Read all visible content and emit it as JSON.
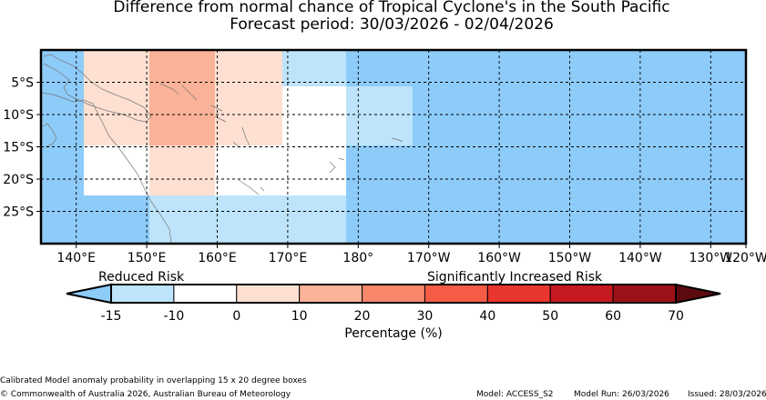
{
  "title": "Difference from normal chance of Tropical Cyclone's in the South Pacific",
  "subtitle": "Forecast period: 30/03/2026 - 02/04/2026",
  "map": {
    "lon_range": [
      135,
      235
    ],
    "lat_range": [
      -30,
      0
    ],
    "x_ticks": [
      "140°E",
      "150°E",
      "160°E",
      "170°E",
      "180°",
      "170°W",
      "160°W",
      "150°W",
      "140°W",
      "130°W",
      "120°W"
    ],
    "x_tick_values": [
      140,
      150,
      160,
      170,
      180,
      190,
      200,
      210,
      220,
      230,
      240
    ],
    "y_ticks": [
      "5°S",
      "10°S",
      "15°S",
      "20°S",
      "25°S"
    ],
    "y_tick_values": [
      -5,
      -10,
      -15,
      -20,
      -25
    ],
    "grid": "dashed",
    "cells": [
      {
        "lon": [
          135,
          235
        ],
        "lat": [
          -30,
          0
        ],
        "category": -15
      },
      {
        "lon": [
          141,
          171
        ],
        "lat": [
          -22,
          0
        ],
        "category": 10
      },
      {
        "lon": [
          150,
          180
        ],
        "lat": [
          -15,
          -22
        ],
        "category": -10
      },
      {
        "lon": [
          171,
          180
        ],
        "lat": [
          -6,
          -15
        ],
        "category": -10
      },
      {
        "lon": [
          141,
          150
        ],
        "lat": [
          -15,
          -22
        ],
        "category": -10
      },
      {
        "lon": [
          160,
          170
        ],
        "lat": [
          -15,
          -22
        ],
        "category": -10
      },
      {
        "lon": [
          160,
          170
        ],
        "lat": [
          -6,
          -15
        ],
        "category": 10
      },
      {
        "lon": [
          150,
          160
        ],
        "lat": [
          -15,
          -22
        ],
        "category": 10
      },
      {
        "lon": [
          150,
          160
        ],
        "lat": [
          0,
          -15
        ],
        "category": 20
      },
      {
        "lon": [
          171,
          180
        ],
        "lat": [
          0,
          -6
        ],
        "category": -15
      },
      {
        "lon": [
          180,
          190
        ],
        "lat": [
          -6,
          -15
        ],
        "category": -15
      },
      {
        "lon": [
          150,
          180
        ],
        "lat": [
          -22,
          -30
        ],
        "category": -15
      }
    ]
  },
  "colorbar": {
    "left_label": "Reduced Risk",
    "right_label": "Significantly Increased Risk",
    "tick_labels": [
      "-15",
      "-10",
      "0",
      "10",
      "20",
      "30",
      "40",
      "50",
      "60",
      "70"
    ],
    "colors": [
      "#bde4fa",
      "#ffffff",
      "#fde0d2",
      "#fab398",
      "#f8866a",
      "#f55c45",
      "#e8352d",
      "#c61a20",
      "#9c1218"
    ],
    "under_color": "#8dcbf9",
    "over_color": "#5c0a10",
    "label": "Percentage (%)"
  },
  "footer": {
    "description": "Calibrated Model anomaly probability in overlapping 15 x 20 degree boxes",
    "copyright": "© Commonwealth of Australia 2026, Australian Bureau of Meteorology",
    "model": "Model: ACCESS_S2",
    "model_run": "Model Run: 26/03/2026",
    "issued": "Issued: 28/03/2026"
  }
}
